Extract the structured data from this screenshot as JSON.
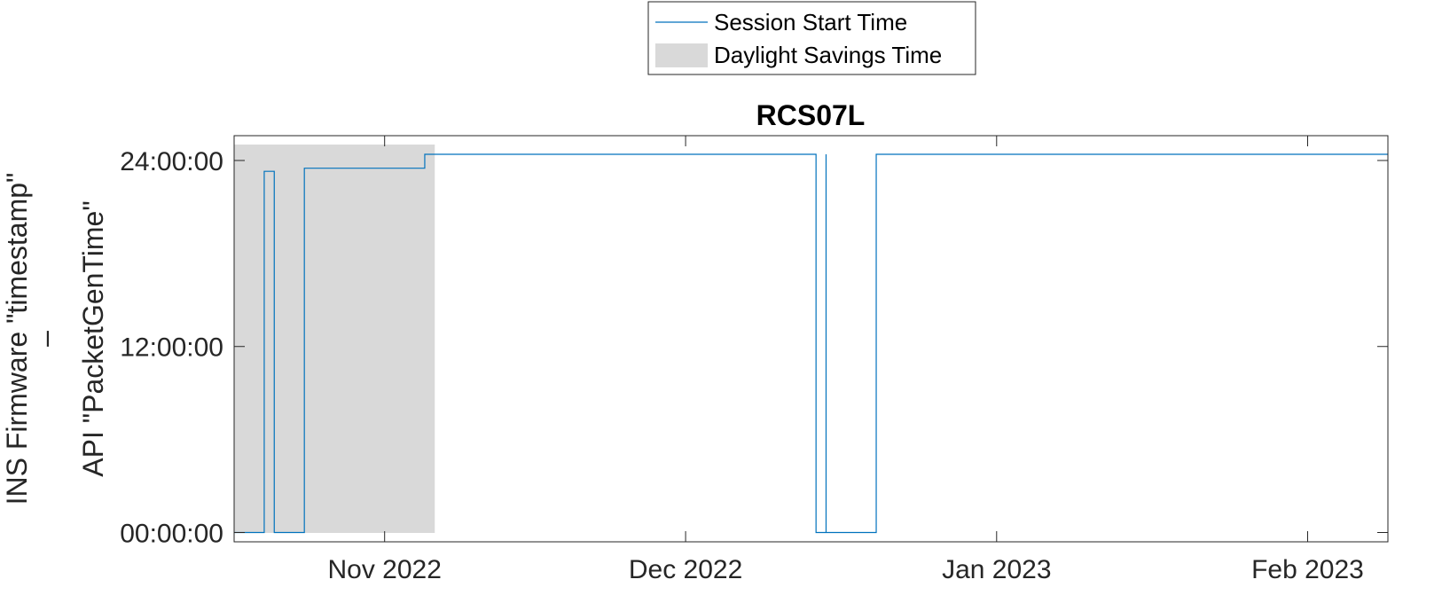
{
  "chart_data": {
    "type": "line",
    "title": "RCS07L",
    "ylabel_lines": [
      "INS Firmware \"timestamp\"",
      "–",
      "API \"PacketGenTime\""
    ],
    "xlabel": "",
    "xlim": [
      "2022-10-17",
      "2023-02-09"
    ],
    "ylim_hours": [
      -0.6,
      25.6
    ],
    "y_ticks": [
      {
        "hours": 0,
        "label": "00:00:00"
      },
      {
        "hours": 12,
        "label": "12:00:00"
      },
      {
        "hours": 24,
        "label": "24:00:00"
      }
    ],
    "x_ticks": [
      {
        "date": "2022-11-01",
        "label": "Nov 2022"
      },
      {
        "date": "2022-12-01",
        "label": "Dec 2022"
      },
      {
        "date": "2023-01-01",
        "label": "Jan 2023"
      },
      {
        "date": "2023-02-01",
        "label": "Feb 2023"
      }
    ],
    "shaded_regions": [
      {
        "name": "Daylight Savings Time",
        "start": "2022-10-17",
        "end": "2022-11-06",
        "color": "#d9d9d9"
      }
    ],
    "series": [
      {
        "name": "Session Start Time",
        "color": "#0072bd",
        "step": true,
        "points": [
          [
            "2022-10-17",
            0.0
          ],
          [
            "2022-10-20",
            0.0
          ],
          [
            "2022-10-20",
            23.3
          ],
          [
            "2022-10-21",
            23.3
          ],
          [
            "2022-10-21",
            1.0
          ],
          [
            "2022-10-21",
            0.0
          ],
          [
            "2022-10-24",
            0.0
          ],
          [
            "2022-10-24",
            23.5
          ],
          [
            "2022-11-05",
            23.5
          ],
          [
            "2022-11-05",
            24.4
          ],
          [
            "2022-12-14",
            24.4
          ],
          [
            "2022-12-14",
            0.0
          ],
          [
            "2022-12-15",
            0.0
          ],
          [
            "2022-12-15",
            24.4
          ],
          [
            "2022-12-15",
            0.0
          ],
          [
            "2022-12-20",
            0.0
          ],
          [
            "2022-12-20",
            24.4
          ],
          [
            "2023-02-09",
            24.4
          ]
        ]
      }
    ],
    "legend": {
      "position": "top-center",
      "entries": [
        {
          "label": "Session Start Time",
          "kind": "line",
          "color": "#0072bd"
        },
        {
          "label": "Daylight Savings Time",
          "kind": "patch",
          "color": "#d9d9d9"
        }
      ]
    },
    "grid": false
  }
}
